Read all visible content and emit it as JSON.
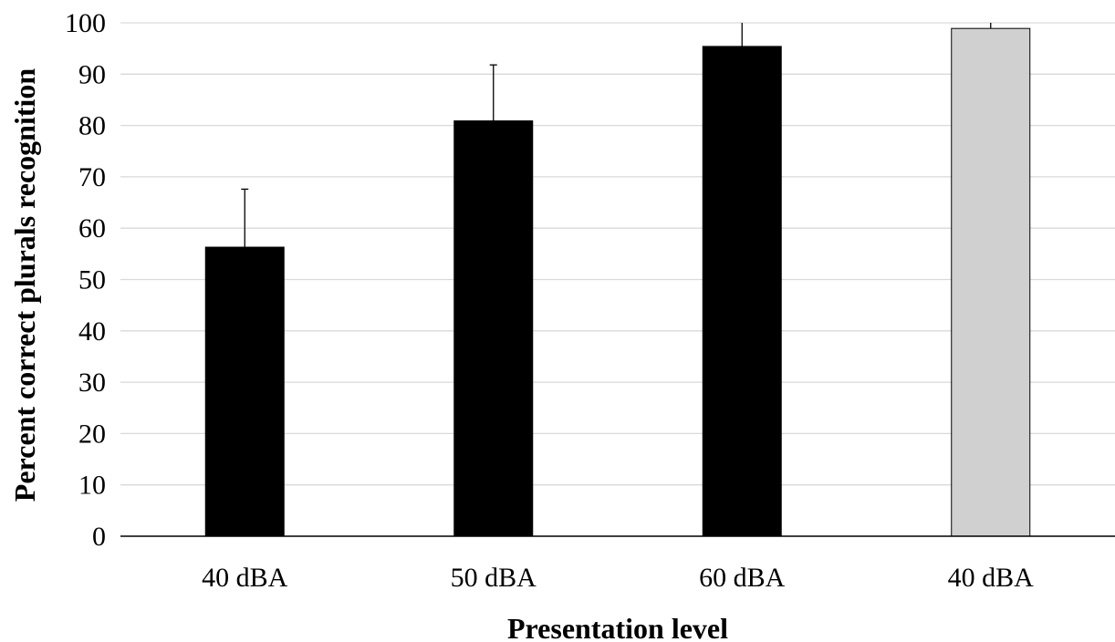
{
  "chart_data": {
    "type": "bar",
    "categories": [
      "40 dBA",
      "50 dBA",
      "60 dBA",
      "40 dBA"
    ],
    "values": [
      56.3,
      80.9,
      95.4,
      98.9
    ],
    "error_upper": [
      67.6,
      91.8,
      100,
      100
    ],
    "bar_colors": [
      "#000000",
      "#000000",
      "#000000",
      "#d0d0d0"
    ],
    "xlabel": "Presentation level",
    "ylabel": "Percent correct plurals recognition",
    "ylim": [
      0,
      100
    ],
    "yticks": [
      0,
      10,
      20,
      30,
      40,
      50,
      60,
      70,
      80,
      90,
      100
    ],
    "grid": true,
    "legend": "none"
  }
}
